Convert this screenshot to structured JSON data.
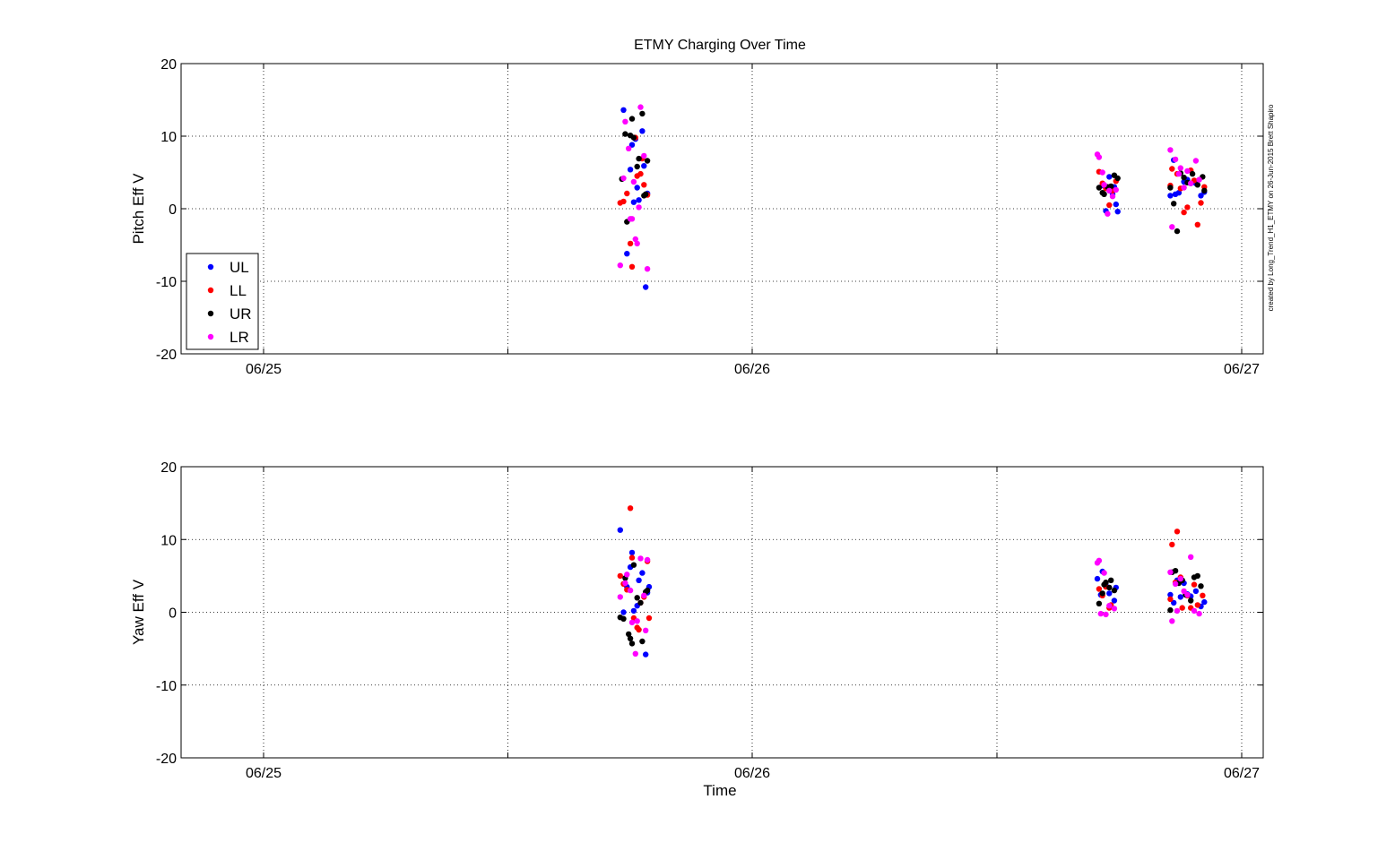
{
  "figure": {
    "title": "ETMY Charging Over Time",
    "credit": "created by Long_Trend_H1_ETMY on 26-Jun-2015 Brett Shapiro"
  },
  "chart_data": [
    {
      "type": "scatter",
      "title": "ETMY Charging Over Time",
      "xlabel": "",
      "ylabel": "Pitch Eff V",
      "xlim": [
        "06/24 20:00",
        "06/27 01:00"
      ],
      "xticks": [
        "06/25",
        "06/26",
        "06/27"
      ],
      "ylim": [
        -20,
        20
      ],
      "yticks": [
        -20,
        -10,
        0,
        10,
        20
      ],
      "grid": true,
      "legend": {
        "position": "bottom-left",
        "entries": [
          "UL",
          "LL",
          "UR",
          "LR"
        ]
      },
      "series": [
        {
          "name": "UL",
          "color": "#0000ff",
          "points": [
            [
              "06/25 17:40",
              13.6
            ],
            [
              "06/25 17:50",
              -6.2
            ],
            [
              "06/25 18:00",
              5.4
            ],
            [
              "06/25 18:05",
              8.8
            ],
            [
              "06/25 18:10",
              0.9
            ],
            [
              "06/25 18:15",
              9.6
            ],
            [
              "06/25 18:20",
              2.9
            ],
            [
              "06/25 18:25",
              1.2
            ],
            [
              "06/25 18:35",
              10.7
            ],
            [
              "06/25 18:40",
              5.9
            ],
            [
              "06/25 18:45",
              -10.8
            ],
            [
              "06/25 18:50",
              2.1
            ],
            [
              "06/26 17:10",
              3.2
            ],
            [
              "06/26 17:20",
              -0.3
            ],
            [
              "06/26 17:30",
              4.4
            ],
            [
              "06/26 17:40",
              2.0
            ],
            [
              "06/26 17:45",
              3.0
            ],
            [
              "06/26 17:50",
              0.6
            ],
            [
              "06/26 17:55",
              -0.4
            ],
            [
              "06/26 20:30",
              1.8
            ],
            [
              "06/26 20:40",
              6.7
            ],
            [
              "06/26 20:45",
              2.0
            ],
            [
              "06/26 20:55",
              2.2
            ],
            [
              "06/26 21:10",
              3.7
            ],
            [
              "06/26 21:20",
              4.0
            ],
            [
              "06/26 21:30",
              3.5
            ],
            [
              "06/26 21:45",
              3.5
            ],
            [
              "06/26 22:00",
              1.8
            ],
            [
              "06/26 22:10",
              2.3
            ]
          ]
        },
        {
          "name": "LL",
          "color": "#ff0000",
          "points": [
            [
              "06/25 17:30",
              0.8
            ],
            [
              "06/25 17:40",
              1.0
            ],
            [
              "06/25 17:50",
              2.1
            ],
            [
              "06/25 18:00",
              -4.8
            ],
            [
              "06/25 18:05",
              -8.0
            ],
            [
              "06/25 18:15",
              9.8
            ],
            [
              "06/25 18:20",
              4.5
            ],
            [
              "06/25 18:30",
              4.8
            ],
            [
              "06/25 18:35",
              6.9
            ],
            [
              "06/25 18:40",
              3.3
            ],
            [
              "06/25 18:50",
              1.9
            ],
            [
              "06/26 17:00",
              5.1
            ],
            [
              "06/26 17:10",
              3.5
            ],
            [
              "06/26 17:20",
              2.8
            ],
            [
              "06/26 17:30",
              0.5
            ],
            [
              "06/26 17:40",
              2.5
            ],
            [
              "06/26 17:50",
              3.8
            ],
            [
              "06/26 20:30",
              3.2
            ],
            [
              "06/26 20:35",
              5.5
            ],
            [
              "06/26 20:50",
              4.8
            ],
            [
              "06/26 21:00",
              2.8
            ],
            [
              "06/26 21:10",
              -0.5
            ],
            [
              "06/26 21:20",
              0.2
            ],
            [
              "06/26 21:30",
              5.3
            ],
            [
              "06/26 21:40",
              3.9
            ],
            [
              "06/26 21:50",
              -2.2
            ],
            [
              "06/26 22:00",
              0.8
            ],
            [
              "06/26 22:10",
              3.0
            ]
          ]
        },
        {
          "name": "UR",
          "color": "#000000",
          "points": [
            [
              "06/25 17:35",
              4.1
            ],
            [
              "06/25 17:45",
              10.3
            ],
            [
              "06/25 17:50",
              -1.8
            ],
            [
              "06/25 18:00",
              10.1
            ],
            [
              "06/25 18:05",
              12.4
            ],
            [
              "06/25 18:10",
              9.8
            ],
            [
              "06/25 18:20",
              5.8
            ],
            [
              "06/25 18:25",
              6.9
            ],
            [
              "06/25 18:35",
              13.1
            ],
            [
              "06/25 18:40",
              1.8
            ],
            [
              "06/25 18:45",
              2.0
            ],
            [
              "06/25 18:50",
              6.6
            ],
            [
              "06/26 17:00",
              2.9
            ],
            [
              "06/26 17:10",
              2.2
            ],
            [
              "06/26 17:15",
              2.0
            ],
            [
              "06/26 17:25",
              3.0
            ],
            [
              "06/26 17:35",
              3.1
            ],
            [
              "06/26 17:45",
              4.6
            ],
            [
              "06/26 17:55",
              4.2
            ],
            [
              "06/26 20:30",
              2.9
            ],
            [
              "06/26 20:40",
              0.7
            ],
            [
              "06/26 20:50",
              -3.1
            ],
            [
              "06/26 21:00",
              4.9
            ],
            [
              "06/26 21:10",
              4.3
            ],
            [
              "06/26 21:20",
              3.6
            ],
            [
              "06/26 21:35",
              4.8
            ],
            [
              "06/26 21:50",
              3.3
            ],
            [
              "06/26 22:05",
              4.4
            ],
            [
              "06/26 22:10",
              2.5
            ]
          ]
        },
        {
          "name": "LR",
          "color": "#ff00ff",
          "points": [
            [
              "06/25 17:30",
              -7.8
            ],
            [
              "06/25 17:40",
              4.2
            ],
            [
              "06/25 17:45",
              12.0
            ],
            [
              "06/25 17:55",
              8.3
            ],
            [
              "06/25 18:00",
              -1.4
            ],
            [
              "06/25 18:05",
              -1.4
            ],
            [
              "06/25 18:10",
              3.7
            ],
            [
              "06/25 18:15",
              -4.2
            ],
            [
              "06/25 18:20",
              -4.8
            ],
            [
              "06/25 18:25",
              0.2
            ],
            [
              "06/25 18:30",
              14.0
            ],
            [
              "06/25 18:40",
              7.3
            ],
            [
              "06/25 18:50",
              -8.3
            ],
            [
              "06/26 16:55",
              7.5
            ],
            [
              "06/26 17:00",
              7.1
            ],
            [
              "06/26 17:10",
              5.0
            ],
            [
              "06/26 17:15",
              3.3
            ],
            [
              "06/26 17:25",
              -0.7
            ],
            [
              "06/26 17:30",
              2.5
            ],
            [
              "06/26 17:40",
              1.7
            ],
            [
              "06/26 17:50",
              2.6
            ],
            [
              "06/26 20:30",
              8.1
            ],
            [
              "06/26 20:35",
              -2.5
            ],
            [
              "06/26 20:45",
              6.8
            ],
            [
              "06/26 20:55",
              4.8
            ],
            [
              "06/26 21:00",
              5.6
            ],
            [
              "06/26 21:10",
              2.9
            ],
            [
              "06/26 21:20",
              5.2
            ],
            [
              "06/26 21:30",
              3.5
            ],
            [
              "06/26 21:45",
              6.6
            ],
            [
              "06/26 21:55",
              4.0
            ]
          ]
        }
      ]
    },
    {
      "type": "scatter",
      "title": "",
      "xlabel": "Time",
      "ylabel": "Yaw Eff V",
      "xlim": [
        "06/24 20:00",
        "06/27 01:00"
      ],
      "xticks": [
        "06/25",
        "06/26",
        "06/27"
      ],
      "ylim": [
        -20,
        20
      ],
      "yticks": [
        -20,
        -10,
        0,
        10,
        20
      ],
      "grid": true,
      "series": [
        {
          "name": "UL",
          "color": "#0000ff",
          "points": [
            [
              "06/25 17:30",
              11.3
            ],
            [
              "06/25 17:40",
              0.0
            ],
            [
              "06/25 17:50",
              3.5
            ],
            [
              "06/25 18:00",
              6.2
            ],
            [
              "06/25 18:05",
              8.2
            ],
            [
              "06/25 18:10",
              0.2
            ],
            [
              "06/25 18:20",
              0.9
            ],
            [
              "06/25 18:25",
              4.4
            ],
            [
              "06/25 18:35",
              5.4
            ],
            [
              "06/25 18:45",
              -5.8
            ],
            [
              "06/25 18:50",
              2.7
            ],
            [
              "06/25 18:55",
              3.5
            ],
            [
              "06/26 16:55",
              4.6
            ],
            [
              "06/26 17:05",
              2.4
            ],
            [
              "06/26 17:10",
              5.6
            ],
            [
              "06/26 17:20",
              3.7
            ],
            [
              "06/26 17:30",
              2.6
            ],
            [
              "06/26 17:45",
              1.6
            ],
            [
              "06/26 17:50",
              3.4
            ],
            [
              "06/26 20:30",
              2.4
            ],
            [
              "06/26 20:40",
              1.3
            ],
            [
              "06/26 20:50",
              4.4
            ],
            [
              "06/26 21:00",
              2.1
            ],
            [
              "06/26 21:10",
              4.0
            ],
            [
              "06/26 21:20",
              2.5
            ],
            [
              "06/26 21:30",
              2.2
            ],
            [
              "06/26 21:45",
              2.9
            ],
            [
              "06/26 22:00",
              0.8
            ],
            [
              "06/26 22:10",
              1.4
            ]
          ]
        },
        {
          "name": "LL",
          "color": "#ff0000",
          "points": [
            [
              "06/25 17:30",
              5.0
            ],
            [
              "06/25 17:40",
              3.9
            ],
            [
              "06/25 17:50",
              3.1
            ],
            [
              "06/25 18:00",
              14.3
            ],
            [
              "06/25 18:05",
              7.5
            ],
            [
              "06/25 18:10",
              -0.8
            ],
            [
              "06/25 18:20",
              -2.1
            ],
            [
              "06/25 18:25",
              -2.4
            ],
            [
              "06/25 18:30",
              1.3
            ],
            [
              "06/25 18:40",
              2.1
            ],
            [
              "06/25 18:50",
              7.0
            ],
            [
              "06/25 18:55",
              -0.8
            ],
            [
              "06/26 17:00",
              3.2
            ],
            [
              "06/26 17:10",
              2.3
            ],
            [
              "06/26 17:20",
              3.5
            ],
            [
              "06/26 17:30",
              0.6
            ],
            [
              "06/26 17:35",
              1.0
            ],
            [
              "06/26 20:30",
              1.8
            ],
            [
              "06/26 20:35",
              9.3
            ],
            [
              "06/26 20:45",
              4.1
            ],
            [
              "06/26 20:50",
              11.1
            ],
            [
              "06/26 21:00",
              4.8
            ],
            [
              "06/26 21:05",
              0.6
            ],
            [
              "06/26 21:20",
              2.3
            ],
            [
              "06/26 21:30",
              0.6
            ],
            [
              "06/26 21:40",
              3.8
            ],
            [
              "06/26 21:50",
              1.0
            ],
            [
              "06/26 22:05",
              2.3
            ]
          ]
        },
        {
          "name": "UR",
          "color": "#000000",
          "points": [
            [
              "06/25 17:30",
              -0.7
            ],
            [
              "06/25 17:40",
              -0.9
            ],
            [
              "06/25 17:45",
              4.7
            ],
            [
              "06/25 17:55",
              -3.0
            ],
            [
              "06/25 18:00",
              -3.6
            ],
            [
              "06/25 18:05",
              -4.3
            ],
            [
              "06/25 18:10",
              6.5
            ],
            [
              "06/25 18:20",
              2.0
            ],
            [
              "06/25 18:30",
              1.3
            ],
            [
              "06/25 18:35",
              -4.0
            ],
            [
              "06/25 18:45",
              2.8
            ],
            [
              "06/25 18:50",
              3.0
            ],
            [
              "06/26 17:00",
              1.2
            ],
            [
              "06/26 17:10",
              2.6
            ],
            [
              "06/26 17:15",
              3.8
            ],
            [
              "06/26 17:20",
              4.1
            ],
            [
              "06/26 17:30",
              3.4
            ],
            [
              "06/26 17:35",
              4.4
            ],
            [
              "06/26 17:45",
              3.0
            ],
            [
              "06/26 20:30",
              0.3
            ],
            [
              "06/26 20:35",
              5.5
            ],
            [
              "06/26 20:45",
              5.7
            ],
            [
              "06/26 20:55",
              4.0
            ],
            [
              "06/26 21:05",
              4.4
            ],
            [
              "06/26 21:15",
              2.4
            ],
            [
              "06/26 21:30",
              1.6
            ],
            [
              "06/26 21:40",
              4.8
            ],
            [
              "06/26 21:50",
              5.0
            ],
            [
              "06/26 22:00",
              3.6
            ]
          ]
        },
        {
          "name": "LR",
          "color": "#ff00ff",
          "points": [
            [
              "06/25 17:30",
              2.1
            ],
            [
              "06/25 17:45",
              4.0
            ],
            [
              "06/25 17:50",
              5.2
            ],
            [
              "06/25 18:00",
              3.0
            ],
            [
              "06/25 18:05",
              -1.4
            ],
            [
              "06/25 18:15",
              -5.7
            ],
            [
              "06/25 18:20",
              -1.2
            ],
            [
              "06/25 18:30",
              7.4
            ],
            [
              "06/25 18:40",
              2.3
            ],
            [
              "06/25 18:45",
              -2.5
            ],
            [
              "06/25 18:50",
              7.2
            ],
            [
              "06/26 16:55",
              6.8
            ],
            [
              "06/26 17:00",
              7.1
            ],
            [
              "06/26 17:05",
              -0.2
            ],
            [
              "06/26 17:15",
              5.4
            ],
            [
              "06/26 17:20",
              -0.3
            ],
            [
              "06/26 17:30",
              0.9
            ],
            [
              "06/26 17:45",
              0.5
            ],
            [
              "06/26 20:30",
              5.5
            ],
            [
              "06/26 20:35",
              -1.2
            ],
            [
              "06/26 20:45",
              3.9
            ],
            [
              "06/26 20:50",
              0.2
            ],
            [
              "06/26 21:00",
              4.6
            ],
            [
              "06/26 21:10",
              2.9
            ],
            [
              "06/26 21:20",
              2.4
            ],
            [
              "06/26 21:30",
              7.6
            ],
            [
              "06/26 21:40",
              0.2
            ],
            [
              "06/26 21:55",
              -0.2
            ]
          ]
        }
      ]
    }
  ]
}
